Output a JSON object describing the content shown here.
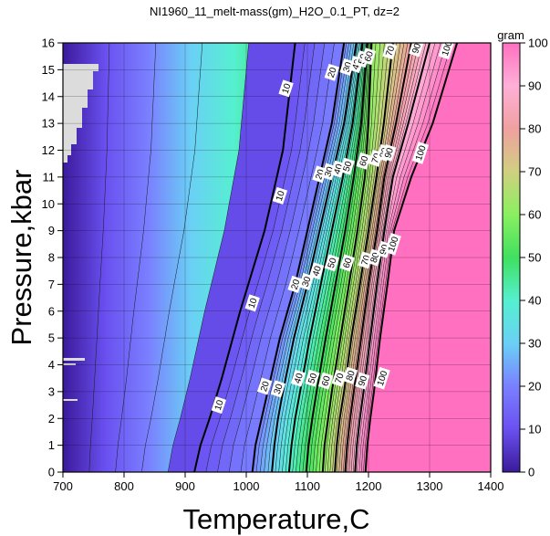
{
  "chart_data": {
    "type": "contour",
    "title": "NI1960_11_melt-mass(gm)_H2O_0.1_PT, dz=2",
    "xlabel": "Temperature,C",
    "ylabel": "Pressure,kbar",
    "xlim": [
      700,
      1400
    ],
    "ylim": [
      0,
      16
    ],
    "xticks": [
      "700",
      "800",
      "900",
      "1000",
      "1100",
      "1200",
      "1300",
      "1400"
    ],
    "yticks": [
      "0",
      "1",
      "2",
      "3",
      "4",
      "5",
      "6",
      "7",
      "8",
      "9",
      "10",
      "11",
      "12",
      "13",
      "14",
      "15",
      "16"
    ],
    "grid": true,
    "colorbar": {
      "label": "gram",
      "range": [
        0,
        100
      ],
      "ticks": [
        "0",
        "10",
        "20",
        "30",
        "40",
        "50",
        "60",
        "70",
        "80",
        "90",
        "100"
      ],
      "stops": [
        "#3a1a9a",
        "#6a50f0",
        "#7a80ff",
        "#6ad0f5",
        "#55f0d0",
        "#40e060",
        "#8af060",
        "#d0d080",
        "#f0a0a0",
        "#ffb0d8",
        "#ff70c0"
      ]
    },
    "contour_interval": 2,
    "major_levels": [
      10,
      20,
      30,
      40,
      50,
      60,
      70,
      80,
      90,
      100
    ],
    "contour_labels": [
      "10",
      "20",
      "30",
      "40",
      "50",
      "60",
      "70",
      "80",
      "90",
      "100"
    ],
    "isolines": [
      {
        "level": 10,
        "points": [
          [
            915,
            0
          ],
          [
            925,
            1
          ],
          [
            940,
            2
          ],
          [
            960,
            3.5
          ],
          [
            990,
            6
          ],
          [
            1030,
            9
          ],
          [
            1060,
            12
          ],
          [
            1080,
            16
          ]
        ]
      },
      {
        "level": 20,
        "points": [
          [
            1010,
            0
          ],
          [
            1015,
            1
          ],
          [
            1025,
            2
          ],
          [
            1035,
            3
          ],
          [
            1055,
            5
          ],
          [
            1080,
            7
          ],
          [
            1100,
            9
          ],
          [
            1120,
            11
          ],
          [
            1140,
            13
          ],
          [
            1160,
            16
          ]
        ]
      },
      {
        "level": 30,
        "points": [
          [
            1042,
            0
          ],
          [
            1046,
            1
          ],
          [
            1052,
            2
          ],
          [
            1060,
            3
          ],
          [
            1078,
            5
          ],
          [
            1100,
            7
          ],
          [
            1120,
            9
          ],
          [
            1140,
            11
          ],
          [
            1160,
            13
          ],
          [
            1180,
            16
          ]
        ]
      },
      {
        "level": 40,
        "points": [
          [
            1070,
            0
          ],
          [
            1074,
            1
          ],
          [
            1080,
            2
          ],
          [
            1088,
            3
          ],
          [
            1104,
            5
          ],
          [
            1122,
            7
          ],
          [
            1140,
            9
          ],
          [
            1158,
            11
          ],
          [
            1174,
            13
          ],
          [
            1190,
            16
          ]
        ]
      },
      {
        "level": 50,
        "points": [
          [
            1098,
            0
          ],
          [
            1102,
            1
          ],
          [
            1108,
            2
          ],
          [
            1115,
            3
          ],
          [
            1130,
            5
          ],
          [
            1146,
            7
          ],
          [
            1162,
            9
          ],
          [
            1176,
            11
          ],
          [
            1188,
            13
          ],
          [
            1198,
            16
          ]
        ]
      },
      {
        "level": 60,
        "points": [
          [
            1125,
            0
          ],
          [
            1128,
            1
          ],
          [
            1134,
            2
          ],
          [
            1140,
            3
          ],
          [
            1154,
            5
          ],
          [
            1168,
            7
          ],
          [
            1182,
            9
          ],
          [
            1194,
            11
          ],
          [
            1200,
            13
          ],
          [
            1205,
            16
          ]
        ]
      },
      {
        "level": 70,
        "points": [
          [
            1145,
            0
          ],
          [
            1148,
            1
          ],
          [
            1153,
            2
          ],
          [
            1160,
            3
          ],
          [
            1172,
            5
          ],
          [
            1186,
            7
          ],
          [
            1200,
            9
          ],
          [
            1213,
            11
          ],
          [
            1225,
            13
          ],
          [
            1240,
            16
          ]
        ]
      },
      {
        "level": 80,
        "points": [
          [
            1162,
            0
          ],
          [
            1165,
            1
          ],
          [
            1170,
            2
          ],
          [
            1176,
            3
          ],
          [
            1188,
            5
          ],
          [
            1200,
            7
          ],
          [
            1214,
            9
          ],
          [
            1226,
            11
          ],
          [
            1245,
            13
          ],
          [
            1270,
            16
          ]
        ]
      },
      {
        "level": 90,
        "points": [
          [
            1178,
            0
          ],
          [
            1181,
            1
          ],
          [
            1186,
            2
          ],
          [
            1192,
            3
          ],
          [
            1203,
            5
          ],
          [
            1214,
            7
          ],
          [
            1226,
            9
          ],
          [
            1240,
            11
          ],
          [
            1265,
            13
          ],
          [
            1300,
            16
          ]
        ]
      },
      {
        "level": 100,
        "points": [
          [
            1195,
            0
          ],
          [
            1198,
            1
          ],
          [
            1203,
            2
          ],
          [
            1209,
            3
          ],
          [
            1219,
            5
          ],
          [
            1231,
            7
          ],
          [
            1242,
            9
          ],
          [
            1270,
            11
          ],
          [
            1305,
            13
          ],
          [
            1345,
            16
          ]
        ]
      }
    ],
    "label_positions": [
      {
        "text": "10",
        "x": 1065,
        "y": 14.3
      },
      {
        "text": "10",
        "x": 1055,
        "y": 10.3
      },
      {
        "text": "10",
        "x": 1010,
        "y": 6.3
      },
      {
        "text": "10",
        "x": 955,
        "y": 2.5
      },
      {
        "text": "20",
        "x": 1140,
        "y": 14.9
      },
      {
        "text": "20",
        "x": 1120,
        "y": 11.1
      },
      {
        "text": "20",
        "x": 1080,
        "y": 7.0
      },
      {
        "text": "20",
        "x": 1030,
        "y": 3.2
      },
      {
        "text": "30",
        "x": 1165,
        "y": 15.1
      },
      {
        "text": "30",
        "x": 1135,
        "y": 11.2
      },
      {
        "text": "30",
        "x": 1098,
        "y": 7.1
      },
      {
        "text": "30",
        "x": 1052,
        "y": 3.1
      },
      {
        "text": "40",
        "x": 1180,
        "y": 15.2
      },
      {
        "text": "40",
        "x": 1150,
        "y": 11.3
      },
      {
        "text": "40",
        "x": 1115,
        "y": 7.5
      },
      {
        "text": "40",
        "x": 1085,
        "y": 3.5
      },
      {
        "text": "50",
        "x": 1190,
        "y": 15.4
      },
      {
        "text": "50",
        "x": 1165,
        "y": 11.4
      },
      {
        "text": "50",
        "x": 1140,
        "y": 7.8
      },
      {
        "text": "50",
        "x": 1108,
        "y": 3.5
      },
      {
        "text": "60",
        "x": 1200,
        "y": 15.5
      },
      {
        "text": "60",
        "x": 1192,
        "y": 11.6
      },
      {
        "text": "60",
        "x": 1165,
        "y": 7.8
      },
      {
        "text": "60",
        "x": 1130,
        "y": 3.4
      },
      {
        "text": "70",
        "x": 1235,
        "y": 15.7
      },
      {
        "text": "70",
        "x": 1212,
        "y": 11.7
      },
      {
        "text": "70",
        "x": 1195,
        "y": 7.9
      },
      {
        "text": "70",
        "x": 1152,
        "y": 3.5
      },
      {
        "text": "80",
        "x": 1225,
        "y": 11.9
      },
      {
        "text": "80",
        "x": 1210,
        "y": 8.0
      },
      {
        "text": "80",
        "x": 1170,
        "y": 3.6
      },
      {
        "text": "90",
        "x": 1278,
        "y": 15.8
      },
      {
        "text": "90",
        "x": 1233,
        "y": 11.9
      },
      {
        "text": "90",
        "x": 1225,
        "y": 8.3
      },
      {
        "text": "90",
        "x": 1190,
        "y": 3.4
      },
      {
        "text": "100",
        "x": 1328,
        "y": 15.8
      },
      {
        "text": "100",
        "x": 1285,
        "y": 11.9
      },
      {
        "text": "100",
        "x": 1240,
        "y": 8.5
      },
      {
        "text": "100",
        "x": 1222,
        "y": 3.5
      }
    ]
  }
}
